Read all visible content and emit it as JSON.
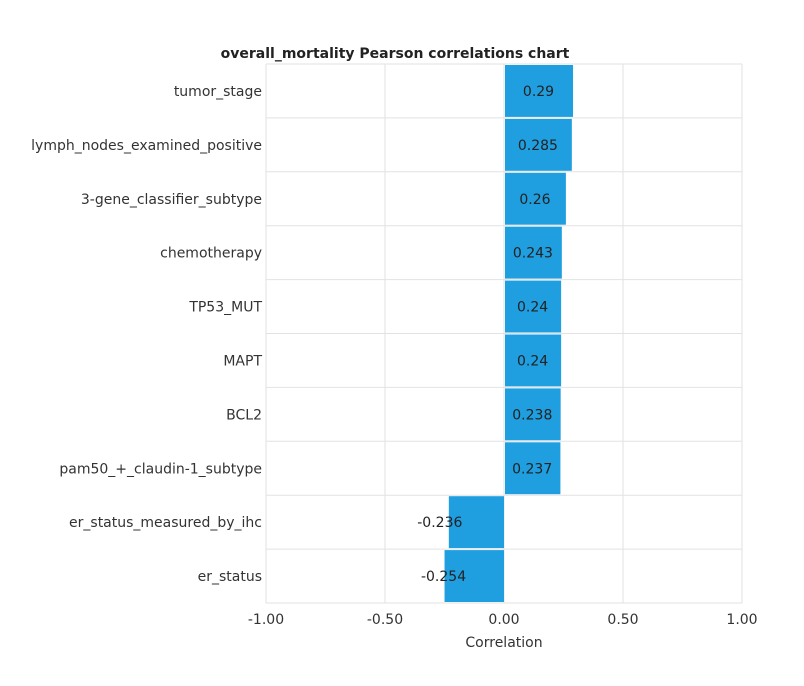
{
  "chart_data": {
    "type": "bar",
    "orientation": "horizontal",
    "title": "overall_mortality Pearson correlations chart",
    "xlabel": "Correlation",
    "ylabel": "",
    "xlim": [
      -1.0,
      1.0
    ],
    "xticks": [
      -1.0,
      -0.5,
      0.0,
      0.5,
      1.0
    ],
    "xtick_labels": [
      "-1.00",
      "-0.50",
      "0.00",
      "0.50",
      "1.00"
    ],
    "grid": true,
    "bar_color": "#1f9ee0",
    "categories": [
      "tumor_stage",
      "lymph_nodes_examined_positive",
      "3-gene_classifier_subtype",
      "chemotherapy",
      "TP53_MUT",
      "MAPT",
      "BCL2",
      "pam50_+_claudin-1_subtype",
      "er_status_measured_by_ihc",
      "er_status"
    ],
    "values": [
      0.29,
      0.285,
      0.26,
      0.243,
      0.24,
      0.24,
      0.238,
      0.237,
      -0.236,
      -0.254
    ],
    "value_labels": [
      "0.29",
      "0.285",
      "0.26",
      "0.243",
      "0.24",
      "0.24",
      "0.238",
      "0.237",
      "-0.236",
      "-0.254"
    ]
  }
}
